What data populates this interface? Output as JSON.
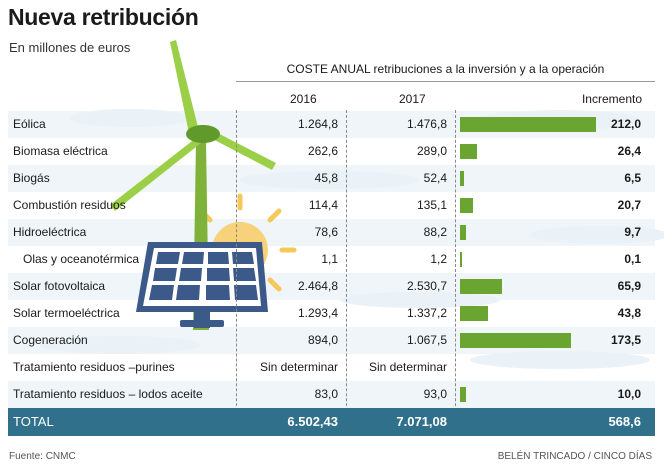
{
  "title": "Nueva retribución",
  "subtitle": "En millones de euros",
  "header_group": "COSTE ANUAL retribuciones a la inversión y a la operación",
  "columns": {
    "c2016": "2016",
    "c2017": "2017",
    "increment": "Incremento"
  },
  "source": "Fuente: CNMC",
  "credit": "BELÉN TRINCADO / CINCO DÍAS",
  "colors": {
    "bar": "#6aa531",
    "total_bg": "#30708a",
    "stripe": "#e9f1f7"
  },
  "chart_data": {
    "type": "table",
    "rows": [
      {
        "name": "Eólica",
        "v2016": "1.264,8",
        "v2017": "1.476,8",
        "increment": "212,0",
        "increment_value": 212.0,
        "indent": false
      },
      {
        "name": "Biomasa eléctrica",
        "v2016": "262,6",
        "v2017": "289,0",
        "increment": "26,4",
        "increment_value": 26.4,
        "indent": false
      },
      {
        "name": "Biogás",
        "v2016": "45,8",
        "v2017": "52,4",
        "increment": "6,5",
        "increment_value": 6.5,
        "indent": false
      },
      {
        "name": "Combustión residuos",
        "v2016": "114,4",
        "v2017": "135,1",
        "increment": "20,7",
        "increment_value": 20.7,
        "indent": false
      },
      {
        "name": "Hidroeléctrica",
        "v2016": "78,6",
        "v2017": "88,2",
        "increment": "9,7",
        "increment_value": 9.7,
        "indent": false
      },
      {
        "name": "Olas y oceanotérmica",
        "v2016": "1,1",
        "v2017": "1,2",
        "increment": "0,1",
        "increment_value": 0.1,
        "indent": true
      },
      {
        "name": "Solar fotovoltaica",
        "v2016": "2.464,8",
        "v2017": "2.530,7",
        "increment": "65,9",
        "increment_value": 65.9,
        "indent": false
      },
      {
        "name": "Solar termoeléctrica",
        "v2016": "1.293,4",
        "v2017": "1.337,2",
        "increment": "43,8",
        "increment_value": 43.8,
        "indent": false
      },
      {
        "name": "Cogeneración",
        "v2016": "894,0",
        "v2017": "1.067,5",
        "increment": "173,5",
        "increment_value": 173.5,
        "indent": false
      },
      {
        "name": "Tratamiento residuos –purines",
        "v2016": "Sin determinar",
        "v2017": "Sin determinar",
        "increment": "",
        "increment_value": null,
        "indent": false
      },
      {
        "name": "Tratamiento residuos – lodos aceite",
        "v2016": "83,0",
        "v2017": "93,0",
        "increment": "10,0",
        "increment_value": 10.0,
        "indent": false
      }
    ],
    "total": {
      "name": "TOTAL",
      "v2016": "6.502,43",
      "v2017": "7.071,08",
      "increment": "568,6"
    }
  }
}
